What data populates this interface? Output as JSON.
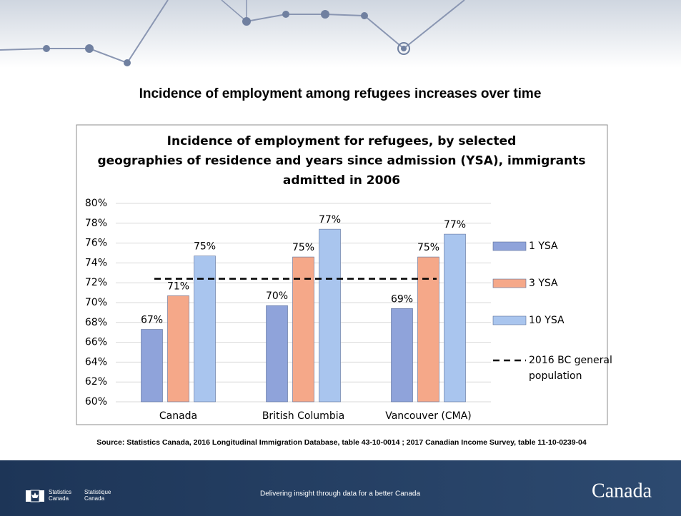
{
  "slide": {
    "title": "Incidence of employment among refugees increases over time",
    "source": "Source: Statistics Canada, 2016 Longitudinal Immigration Database, table 43-10-0014 ; 2017 Canadian Income Survey, table 11-10-0239-04",
    "footer": "Delivering insight through data for a better Canada",
    "agency": [
      "Statistics Canada",
      "Statistique Canada"
    ],
    "wordmark": "Canada"
  },
  "chart_data": {
    "type": "bar",
    "title": "Incidence of employment for refugees, by selected geographies of residence and years since admission (YSA), immigrants admitted in 2006",
    "categories": [
      "Canada",
      "British Columbia",
      "Vancouver (CMA)"
    ],
    "series": [
      {
        "name": "1 YSA",
        "color": "#8fa3da",
        "values": [
          67.3,
          69.7,
          69.4
        ],
        "value_labels": [
          "67%",
          "70%",
          "69%"
        ]
      },
      {
        "name": "3 YSA",
        "color": "#f5a889",
        "values": [
          70.7,
          74.6,
          74.6
        ],
        "value_labels": [
          "71%",
          "75%",
          "75%"
        ]
      },
      {
        "name": "10 YSA",
        "color": "#a9c5ee",
        "values": [
          74.7,
          77.4,
          76.9
        ],
        "value_labels": [
          "75%",
          "77%",
          "77%"
        ]
      }
    ],
    "reference_line": {
      "name": "2016 BC general population",
      "value": 72.4,
      "color": "#000000"
    },
    "ylim": [
      60,
      80
    ],
    "yticks": [
      {
        "value": 60,
        "label": "60%"
      },
      {
        "value": 62,
        "label": "62%"
      },
      {
        "value": 64,
        "label": "64%"
      },
      {
        "value": 66,
        "label": "66%"
      },
      {
        "value": 68,
        "label": "68%"
      },
      {
        "value": 70,
        "label": "70%"
      },
      {
        "value": 72,
        "label": "72%"
      },
      {
        "value": 74,
        "label": "74%"
      },
      {
        "value": 76,
        "label": "76%"
      },
      {
        "value": 78,
        "label": "78%"
      },
      {
        "value": 80,
        "label": "80%"
      }
    ],
    "grid": true,
    "legend": "right"
  }
}
